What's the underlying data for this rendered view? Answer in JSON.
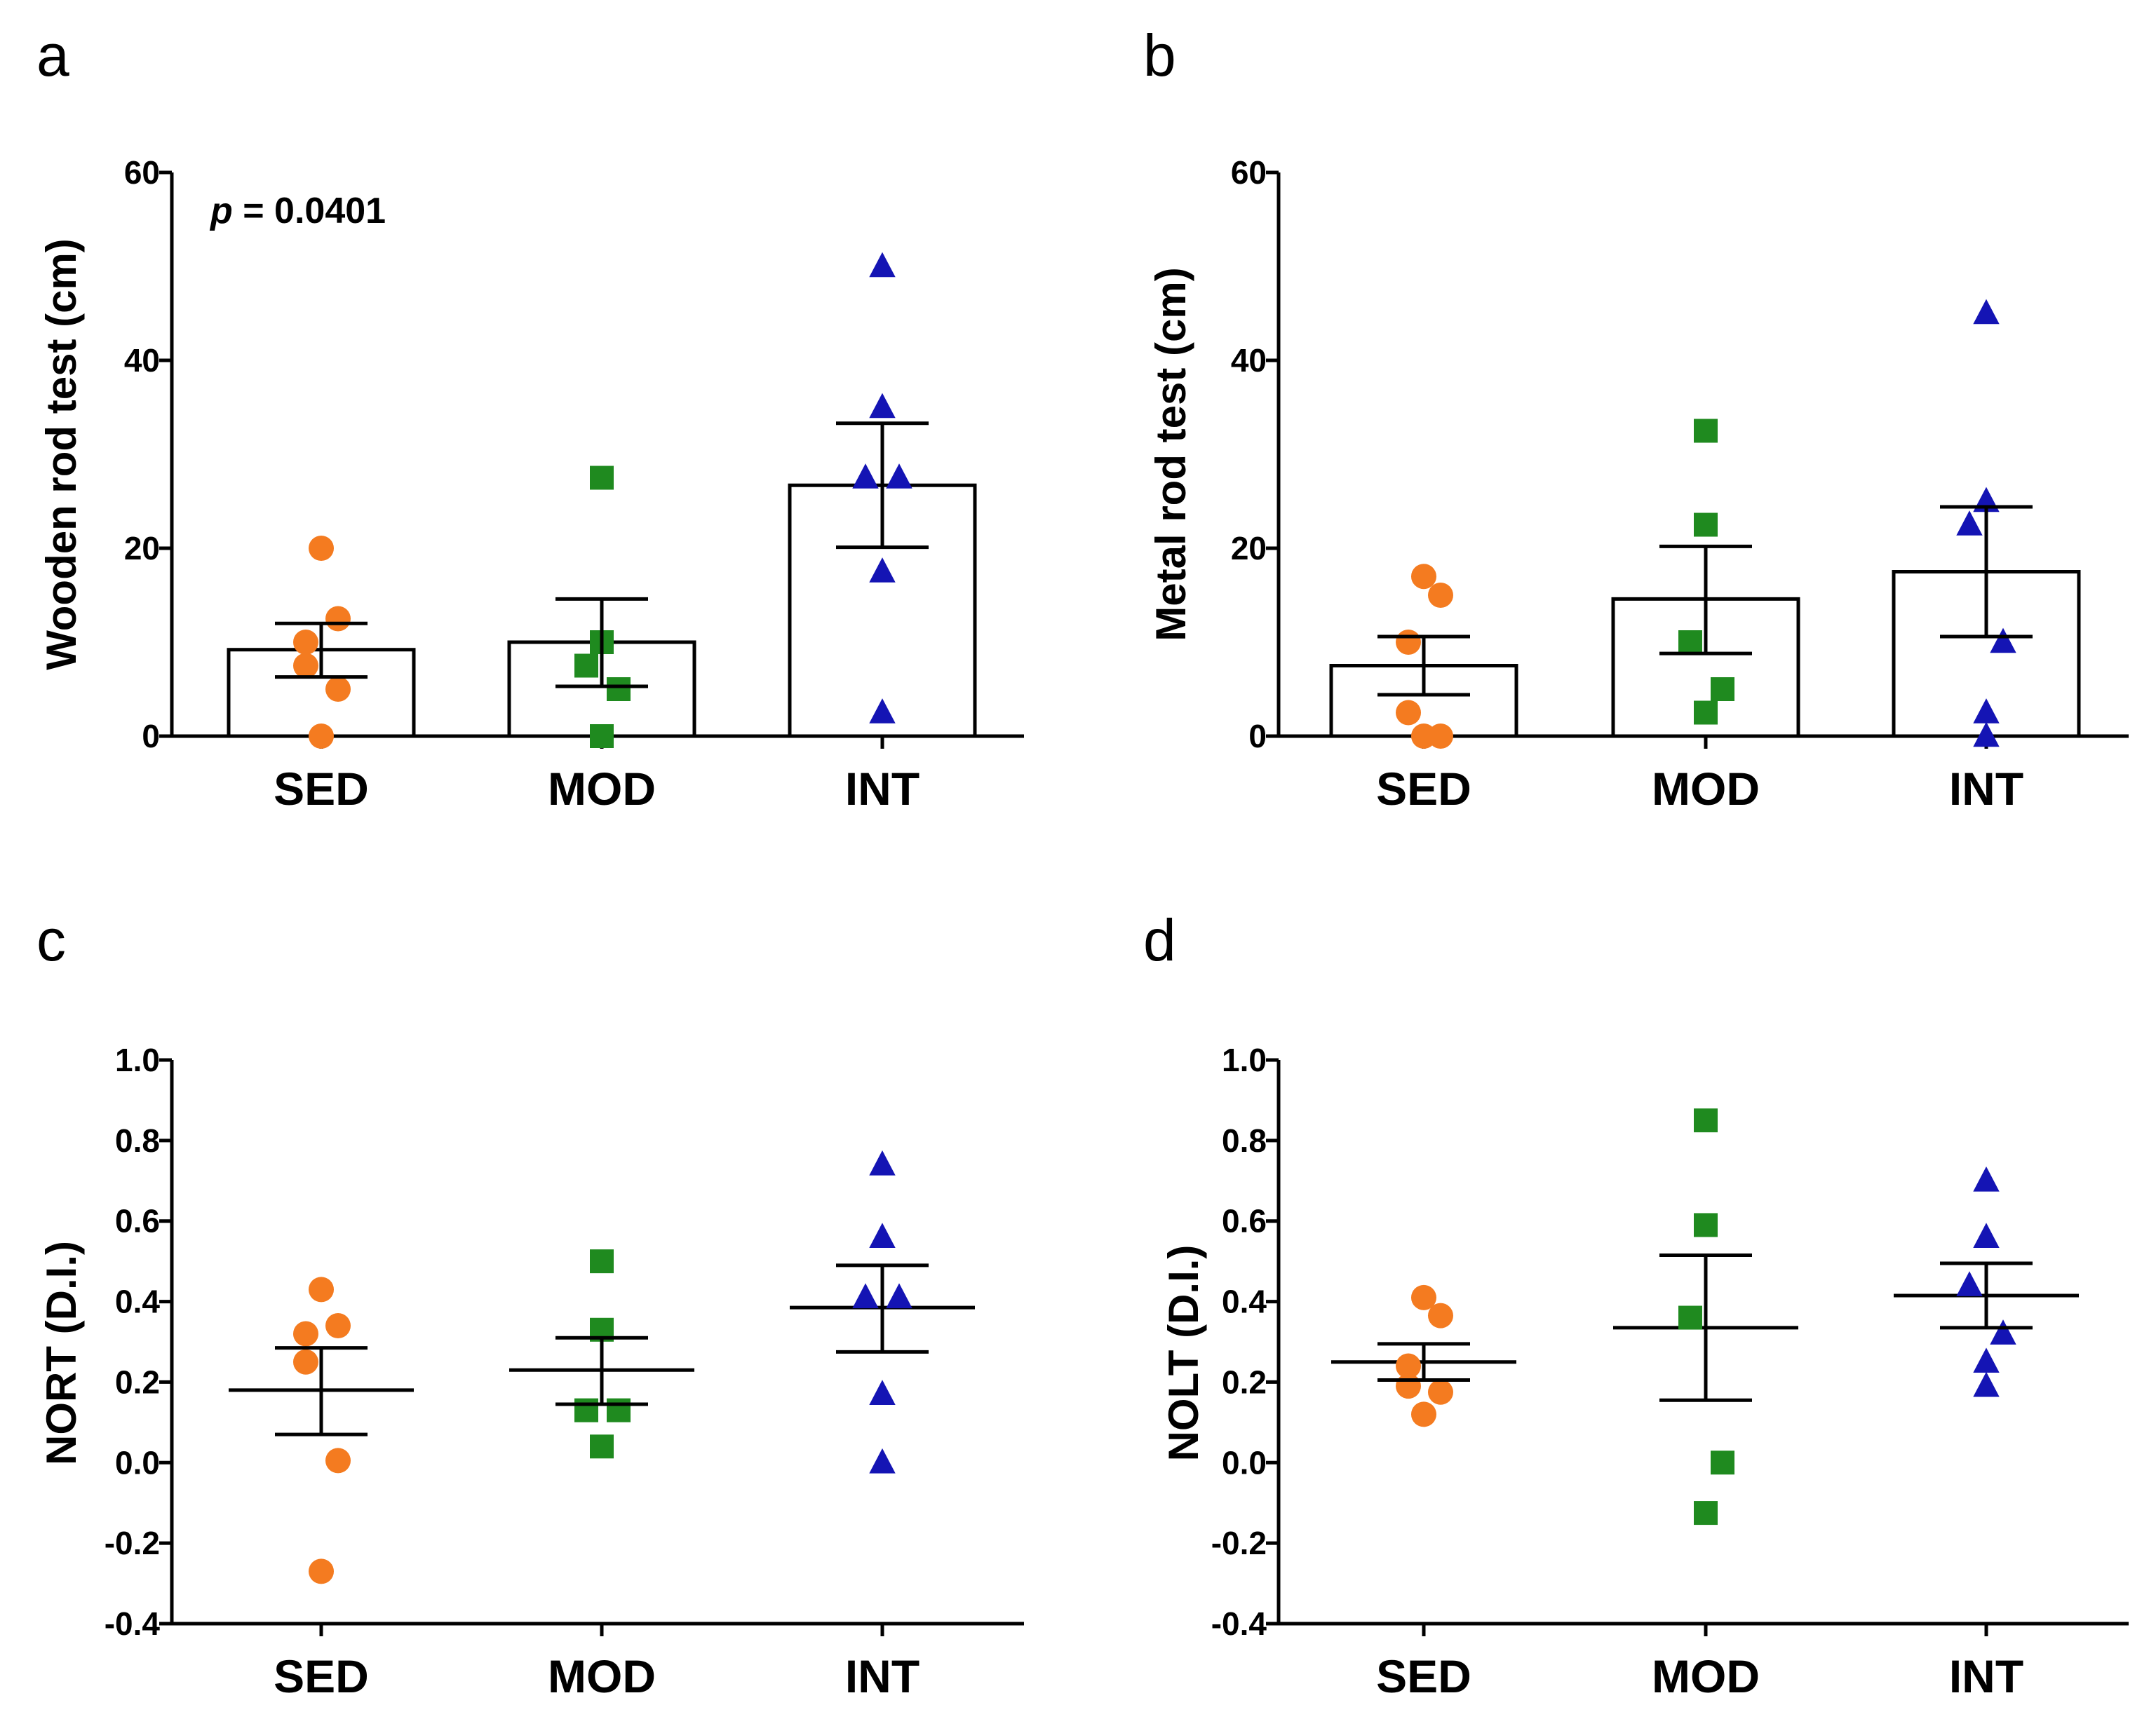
{
  "chart_data": [
    {
      "panel": "a",
      "type": "bar",
      "ylabel": "Wooden rod test (cm)",
      "categories": [
        "SED",
        "MOD",
        "INT"
      ],
      "ylim": [
        0,
        60
      ],
      "yticks": [
        "0",
        "20",
        "40",
        "60"
      ],
      "annotation": {
        "p_label": "p",
        "p_rest": " = 0.0401"
      },
      "groups": [
        {
          "name": "SED",
          "mean": 9.2,
          "sem_low": 6.3,
          "sem_high": 12.0,
          "color": "#f47b20",
          "marker": "circle",
          "points": [
            20,
            12.5,
            10,
            7.5,
            5,
            0
          ]
        },
        {
          "name": "MOD",
          "mean": 10.0,
          "sem_low": 5.3,
          "sem_high": 14.6,
          "color": "#1f8a1f",
          "marker": "square",
          "points": [
            27.5,
            10,
            7.5,
            5,
            0
          ]
        },
        {
          "name": "INT",
          "mean": 26.7,
          "sem_low": 20.1,
          "sem_high": 33.3,
          "color": "#1414b4",
          "marker": "triangle",
          "points": [
            50,
            35,
            27.5,
            27.5,
            17.5,
            2.5
          ]
        }
      ]
    },
    {
      "panel": "b",
      "type": "bar",
      "ylabel": "Metal rod test (cm)",
      "categories": [
        "SED",
        "MOD",
        "INT"
      ],
      "ylim": [
        0,
        60
      ],
      "yticks": [
        "0",
        "20",
        "40",
        "60"
      ],
      "groups": [
        {
          "name": "SED",
          "mean": 7.5,
          "sem_low": 4.4,
          "sem_high": 10.6,
          "color": "#f47b20",
          "marker": "circle",
          "points": [
            17,
            15,
            10,
            2.5,
            0,
            0
          ]
        },
        {
          "name": "MOD",
          "mean": 14.6,
          "sem_low": 8.8,
          "sem_high": 20.2,
          "color": "#1f8a1f",
          "marker": "square",
          "points": [
            32.5,
            22.5,
            10,
            5,
            2.5
          ]
        },
        {
          "name": "INT",
          "mean": 17.5,
          "sem_low": 10.6,
          "sem_high": 24.4,
          "color": "#1414b4",
          "marker": "triangle",
          "points": [
            45,
            25,
            22.5,
            10,
            2.5,
            0
          ]
        }
      ]
    },
    {
      "panel": "c",
      "type": "scatter",
      "ylabel": "NORT (D.I.)",
      "categories": [
        "SED",
        "MOD",
        "INT"
      ],
      "ylim": [
        -0.4,
        1.0
      ],
      "yticks": [
        "-0.4",
        "-0.2",
        "0.0",
        "0.2",
        "0.4",
        "0.6",
        "0.8",
        "1.0"
      ],
      "groups": [
        {
          "name": "SED",
          "mean": 0.18,
          "sem_low": 0.07,
          "sem_high": 0.285,
          "color": "#f47b20",
          "marker": "circle",
          "points": [
            0.43,
            0.34,
            0.32,
            0.25,
            0.005,
            -0.27
          ]
        },
        {
          "name": "MOD",
          "mean": 0.23,
          "sem_low": 0.145,
          "sem_high": 0.31,
          "color": "#1f8a1f",
          "marker": "square",
          "points": [
            0.5,
            0.33,
            0.13,
            0.13,
            0.04
          ]
        },
        {
          "name": "INT",
          "mean": 0.385,
          "sem_low": 0.275,
          "sem_high": 0.49,
          "color": "#1414b4",
          "marker": "triangle",
          "points": [
            0.74,
            0.56,
            0.41,
            0.41,
            0.17,
            0.0
          ]
        }
      ]
    },
    {
      "panel": "d",
      "type": "scatter",
      "ylabel": "NOLT (D.I.)",
      "categories": [
        "SED",
        "MOD",
        "INT"
      ],
      "ylim": [
        -0.4,
        1.0
      ],
      "yticks": [
        "-0.4",
        "-0.2",
        "0.0",
        "0.2",
        "0.4",
        "0.6",
        "0.8",
        "1.0"
      ],
      "groups": [
        {
          "name": "SED",
          "mean": 0.25,
          "sem_low": 0.205,
          "sem_high": 0.295,
          "color": "#f47b20",
          "marker": "circle",
          "points": [
            0.41,
            0.365,
            0.24,
            0.19,
            0.175,
            0.12
          ]
        },
        {
          "name": "MOD",
          "mean": 0.335,
          "sem_low": 0.155,
          "sem_high": 0.515,
          "color": "#1f8a1f",
          "marker": "square",
          "points": [
            0.85,
            0.59,
            0.36,
            0.0,
            -0.125
          ]
        },
        {
          "name": "INT",
          "mean": 0.415,
          "sem_low": 0.335,
          "sem_high": 0.495,
          "color": "#1414b4",
          "marker": "triangle",
          "points": [
            0.7,
            0.56,
            0.44,
            0.32,
            0.25,
            0.19
          ]
        }
      ]
    }
  ]
}
